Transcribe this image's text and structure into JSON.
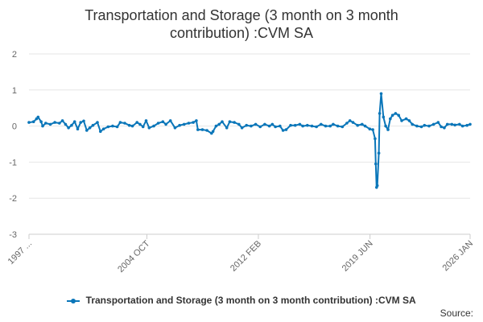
{
  "chart_data": {
    "type": "line",
    "title": "Transportation and Storage (3 month on 3 month contribution) :CVM SA",
    "title_lines": [
      "Transportation and Storage (3 month on 3 month",
      "contribution) :CVM SA"
    ],
    "xlabel": "",
    "ylabel": "",
    "ylim": [
      -3,
      2
    ],
    "yticks": [
      -3,
      -2,
      -1,
      0,
      1,
      2
    ],
    "ytick_labels": [
      "-3",
      "-2",
      "-1",
      "0",
      "1",
      "2"
    ],
    "xlim": [
      1997.0,
      2026.0
    ],
    "xticks": [
      {
        "value": 1997.0,
        "label": "1997 ..."
      },
      {
        "value": 2004.75,
        "label": "2004 OCT"
      },
      {
        "value": 2012.08,
        "label": "2012 FEB"
      },
      {
        "value": 2019.42,
        "label": "2019 JUN"
      },
      {
        "value": 2026.0,
        "label": "2026 JAN"
      }
    ],
    "grid": true,
    "legend_position": "bottom",
    "series": [
      {
        "name": "Transportation and Storage (3 month on 3 month contribution) :CVM SA",
        "color": "#0a76b9",
        "points": [
          [
            1997.0,
            0.1
          ],
          [
            1997.3,
            0.12
          ],
          [
            1997.5,
            0.2
          ],
          [
            1997.6,
            0.25
          ],
          [
            1997.8,
            0.12
          ],
          [
            1997.9,
            0.0
          ],
          [
            1998.1,
            0.08
          ],
          [
            1998.4,
            0.05
          ],
          [
            1998.7,
            0.1
          ],
          [
            1999.0,
            0.08
          ],
          [
            1999.2,
            0.15
          ],
          [
            1999.4,
            0.05
          ],
          [
            1999.6,
            -0.05
          ],
          [
            1999.8,
            0.02
          ],
          [
            2000.0,
            0.12
          ],
          [
            2000.2,
            -0.08
          ],
          [
            2000.4,
            0.1
          ],
          [
            2000.6,
            0.14
          ],
          [
            2000.8,
            -0.12
          ],
          [
            2001.0,
            -0.05
          ],
          [
            2001.2,
            0.02
          ],
          [
            2001.5,
            0.1
          ],
          [
            2001.7,
            -0.15
          ],
          [
            2001.9,
            -0.08
          ],
          [
            2002.2,
            -0.02
          ],
          [
            2002.5,
            0.0
          ],
          [
            2002.8,
            -0.02
          ],
          [
            2003.0,
            0.1
          ],
          [
            2003.3,
            0.08
          ],
          [
            2003.6,
            0.02
          ],
          [
            2003.8,
            0.0
          ],
          [
            2004.1,
            0.1
          ],
          [
            2004.3,
            0.05
          ],
          [
            2004.5,
            -0.02
          ],
          [
            2004.7,
            0.15
          ],
          [
            2004.9,
            -0.05
          ],
          [
            2005.2,
            0.0
          ],
          [
            2005.5,
            0.08
          ],
          [
            2005.8,
            0.12
          ],
          [
            2006.0,
            0.05
          ],
          [
            2006.3,
            0.15
          ],
          [
            2006.6,
            -0.05
          ],
          [
            2006.9,
            0.02
          ],
          [
            2007.2,
            0.05
          ],
          [
            2007.5,
            0.08
          ],
          [
            2007.8,
            0.1
          ],
          [
            2008.0,
            0.15
          ],
          [
            2008.1,
            -0.1
          ],
          [
            2008.4,
            -0.1
          ],
          [
            2008.7,
            -0.12
          ],
          [
            2009.0,
            -0.2
          ],
          [
            2009.1,
            -0.15
          ],
          [
            2009.3,
            0.0
          ],
          [
            2009.5,
            0.05
          ],
          [
            2009.7,
            0.12
          ],
          [
            2010.0,
            -0.05
          ],
          [
            2010.2,
            0.12
          ],
          [
            2010.5,
            0.1
          ],
          [
            2010.8,
            0.05
          ],
          [
            2011.0,
            -0.05
          ],
          [
            2011.3,
            0.02
          ],
          [
            2011.6,
            0.0
          ],
          [
            2011.9,
            0.05
          ],
          [
            2012.2,
            -0.02
          ],
          [
            2012.5,
            0.05
          ],
          [
            2012.8,
            0.0
          ],
          [
            2013.0,
            0.05
          ],
          [
            2013.2,
            -0.02
          ],
          [
            2013.5,
            0.0
          ],
          [
            2013.7,
            -0.12
          ],
          [
            2013.9,
            -0.1
          ],
          [
            2014.2,
            0.02
          ],
          [
            2014.5,
            0.02
          ],
          [
            2014.8,
            0.05
          ],
          [
            2015.0,
            0.0
          ],
          [
            2015.3,
            0.02
          ],
          [
            2015.6,
            0.0
          ],
          [
            2015.9,
            -0.02
          ],
          [
            2016.2,
            0.05
          ],
          [
            2016.5,
            0.0
          ],
          [
            2016.8,
            0.0
          ],
          [
            2017.0,
            0.05
          ],
          [
            2017.3,
            0.0
          ],
          [
            2017.6,
            -0.02
          ],
          [
            2017.9,
            0.08
          ],
          [
            2018.1,
            0.15
          ],
          [
            2018.3,
            0.1
          ],
          [
            2018.6,
            0.02
          ],
          [
            2018.9,
            0.05
          ],
          [
            2019.1,
            0.0
          ],
          [
            2019.4,
            -0.08
          ],
          [
            2019.6,
            -0.1
          ],
          [
            2019.75,
            -0.35
          ],
          [
            2019.8,
            -1.05
          ],
          [
            2019.85,
            -1.7
          ],
          [
            2019.9,
            -1.65
          ],
          [
            2020.0,
            -0.75
          ],
          [
            2020.05,
            0.35
          ],
          [
            2020.15,
            0.9
          ],
          [
            2020.3,
            0.25
          ],
          [
            2020.45,
            0.0
          ],
          [
            2020.6,
            -0.1
          ],
          [
            2020.75,
            0.2
          ],
          [
            2020.9,
            0.3
          ],
          [
            2021.1,
            0.35
          ],
          [
            2021.3,
            0.3
          ],
          [
            2021.5,
            0.15
          ],
          [
            2021.8,
            0.2
          ],
          [
            2022.0,
            0.15
          ],
          [
            2022.2,
            0.05
          ],
          [
            2022.5,
            0.0
          ],
          [
            2022.8,
            -0.02
          ],
          [
            2023.0,
            0.02
          ],
          [
            2023.3,
            0.0
          ],
          [
            2023.6,
            0.05
          ],
          [
            2023.9,
            0.1
          ],
          [
            2024.1,
            -0.02
          ],
          [
            2024.3,
            -0.05
          ],
          [
            2024.5,
            0.05
          ],
          [
            2024.8,
            0.05
          ],
          [
            2025.0,
            0.03
          ],
          [
            2025.3,
            0.05
          ],
          [
            2025.5,
            0.0
          ],
          [
            2025.8,
            0.02
          ],
          [
            2026.0,
            0.05
          ]
        ]
      }
    ],
    "legend_label": "Transportation and Storage (3 month on 3 month contribution) :CVM SA",
    "source_label": "Source:"
  }
}
